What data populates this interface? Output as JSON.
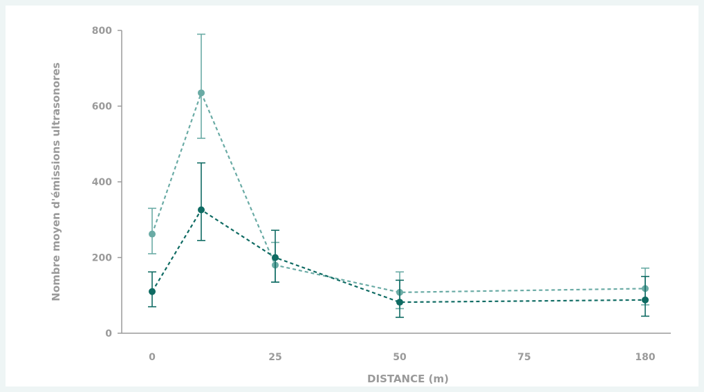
{
  "chart_data": {
    "type": "line",
    "title": "",
    "xlabel": "DISTANCE (m)",
    "ylabel": "Nombre moyen d'émissions ultrasonores",
    "x_tick_labels": [
      "0",
      "25",
      "50",
      "75",
      "180"
    ],
    "y_ticks": [
      0,
      200,
      400,
      600,
      800
    ],
    "ylim": [
      0,
      800
    ],
    "grid": false,
    "legend": "none",
    "series": [
      {
        "color": "#6aaba5",
        "line_style": "dashed",
        "points": [
          {
            "x": "0",
            "y": 262,
            "err_low": 210,
            "err_high": 330
          },
          {
            "x": "10",
            "y": 635,
            "err_low": 515,
            "err_high": 790
          },
          {
            "x": "25",
            "y": 180,
            "err_low": 135,
            "err_high": 240
          },
          {
            "x": "50",
            "y": 108,
            "err_low": 65,
            "err_high": 162
          },
          {
            "x": "180",
            "y": 118,
            "err_low": 75,
            "err_high": 172
          }
        ]
      },
      {
        "color": "#0f6b63",
        "line_style": "dashed",
        "points": [
          {
            "x": "0",
            "y": 110,
            "err_low": 70,
            "err_high": 162
          },
          {
            "x": "10",
            "y": 326,
            "err_low": 245,
            "err_high": 450
          },
          {
            "x": "25",
            "y": 200,
            "err_low": 135,
            "err_high": 272
          },
          {
            "x": "50",
            "y": 82,
            "err_low": 42,
            "err_high": 140
          },
          {
            "x": "180",
            "y": 88,
            "err_low": 45,
            "err_high": 150
          }
        ]
      }
    ]
  }
}
